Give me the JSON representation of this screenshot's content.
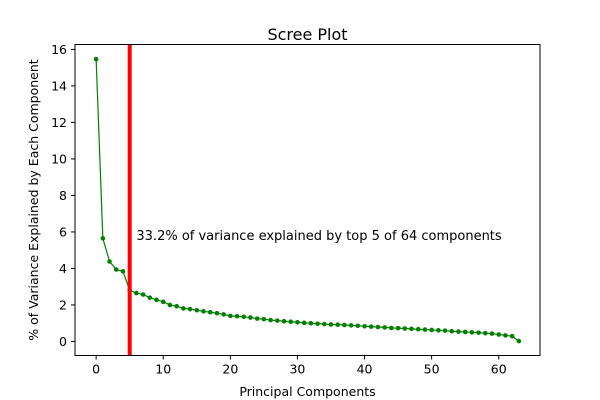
{
  "chart_data": {
    "type": "line",
    "title": "Scree Plot",
    "xlabel": "Principal Components",
    "ylabel": "% of Variance Explained by Each Component",
    "xlim": [
      -3.15,
      66.15
    ],
    "ylim": [
      -0.77,
      16.27
    ],
    "xticks": [
      0,
      10,
      20,
      30,
      40,
      50,
      60
    ],
    "yticks": [
      0,
      2,
      4,
      6,
      8,
      10,
      12,
      14,
      16
    ],
    "grid": false,
    "legend": "none",
    "colors": {
      "series": "#008000",
      "marker_line": "#ff0000"
    },
    "vline_x": 5,
    "annotation": {
      "text": "33.2% of variance explained by top 5 of 64 components",
      "x": 6,
      "y": 5.8
    },
    "series": [
      {
        "x": [
          0,
          1,
          2,
          3,
          4,
          5,
          6,
          7,
          8,
          9,
          10,
          11,
          12,
          13,
          14,
          15,
          16,
          17,
          18,
          19,
          20,
          21,
          22,
          23,
          24,
          25,
          26,
          27,
          28,
          29,
          30,
          31,
          32,
          33,
          34,
          35,
          36,
          37,
          38,
          39,
          40,
          41,
          42,
          43,
          44,
          45,
          46,
          47,
          48,
          49,
          50,
          51,
          52,
          53,
          54,
          55,
          56,
          57,
          58,
          59,
          60,
          61,
          62,
          63
        ],
        "values": [
          15.47,
          5.65,
          4.38,
          3.94,
          3.84,
          2.8,
          2.65,
          2.57,
          2.4,
          2.28,
          2.17,
          2.0,
          1.93,
          1.81,
          1.77,
          1.71,
          1.65,
          1.6,
          1.55,
          1.48,
          1.4,
          1.38,
          1.35,
          1.31,
          1.25,
          1.22,
          1.17,
          1.14,
          1.11,
          1.08,
          1.05,
          1.02,
          1.0,
          0.97,
          0.95,
          0.93,
          0.92,
          0.9,
          0.88,
          0.86,
          0.83,
          0.81,
          0.79,
          0.77,
          0.74,
          0.73,
          0.71,
          0.69,
          0.67,
          0.65,
          0.63,
          0.61,
          0.59,
          0.56,
          0.54,
          0.52,
          0.5,
          0.48,
          0.45,
          0.43,
          0.38,
          0.33,
          0.29,
          0.02
        ]
      }
    ]
  }
}
